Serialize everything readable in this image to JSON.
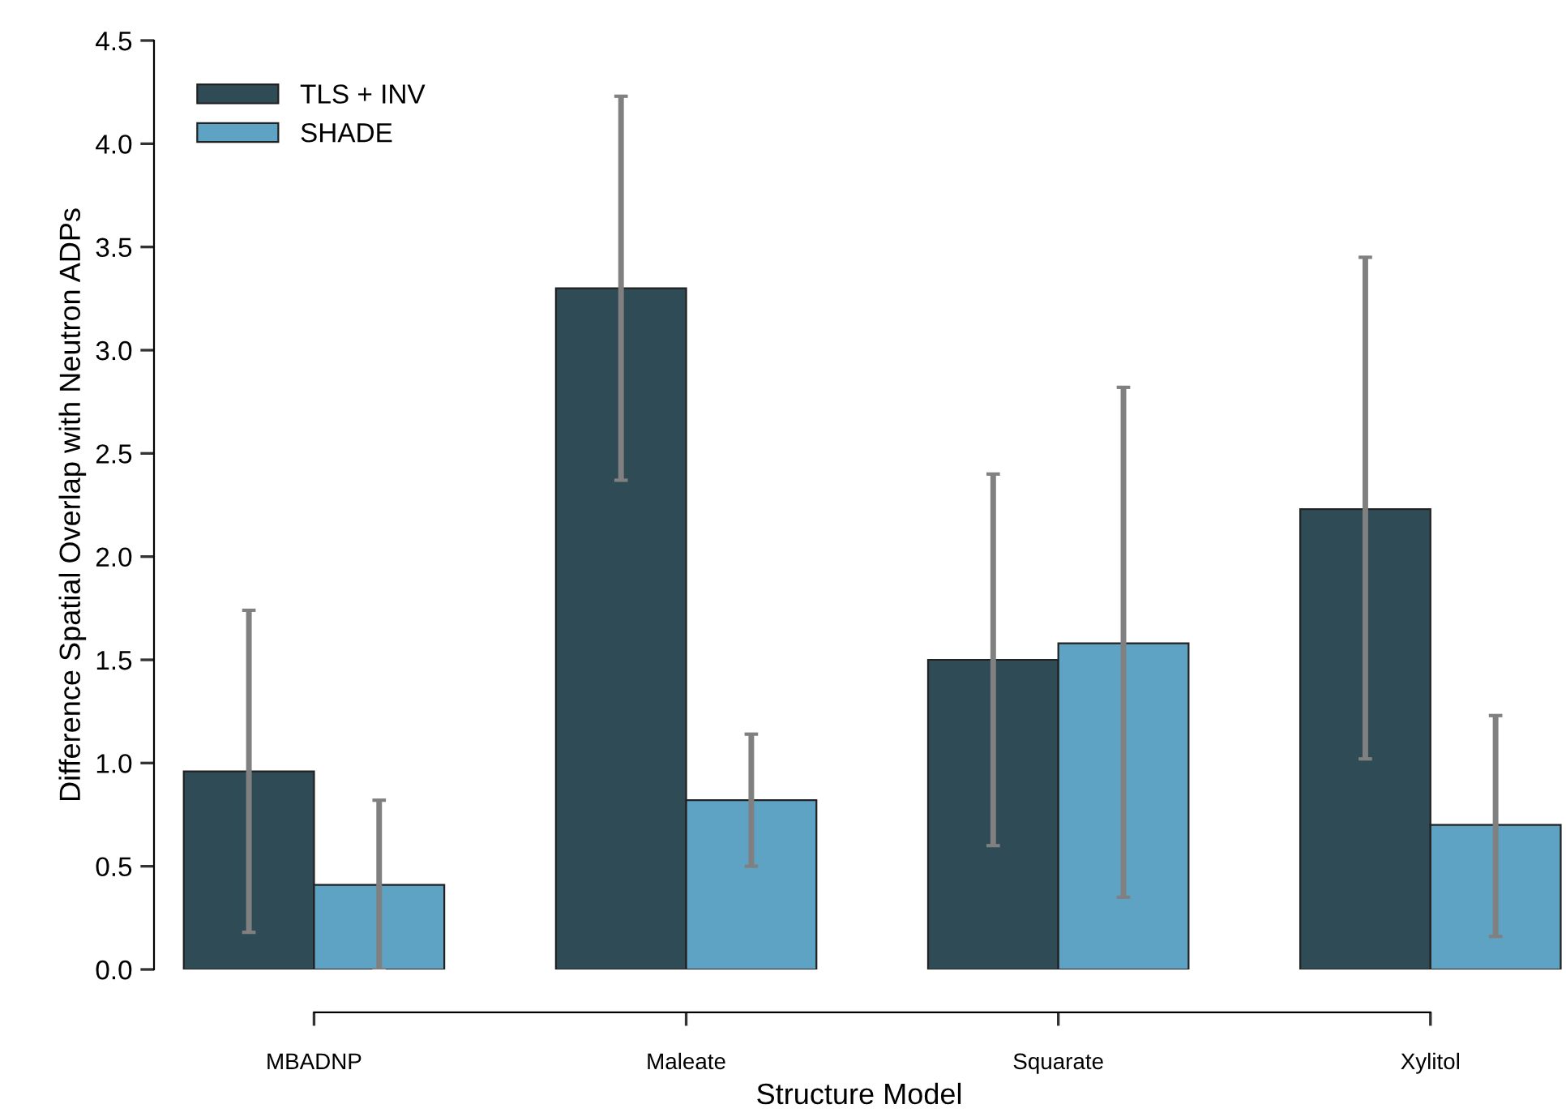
{
  "chart_data": {
    "type": "bar",
    "xlabel": "Structure Model",
    "ylabel": "Difference Spatial Overlap with Neutron ADPs",
    "categories": [
      "MBADNP",
      "Maleate",
      "Squarate",
      "Xylitol"
    ],
    "series": [
      {
        "name": "TLS + INV",
        "color": "#2f4b55",
        "values": [
          0.96,
          3.3,
          1.5,
          2.23
        ],
        "errors": [
          [
            0.18,
            1.74
          ],
          [
            2.37,
            4.23
          ],
          [
            0.6,
            2.4
          ],
          [
            1.02,
            3.45
          ]
        ]
      },
      {
        "name": "SHADE",
        "color": "#5fa3c4",
        "values": [
          0.41,
          0.82,
          1.58,
          0.7
        ],
        "errors": [
          [
            0.0,
            0.82
          ],
          [
            0.5,
            1.14
          ],
          [
            0.35,
            2.82
          ],
          [
            0.16,
            1.23
          ]
        ]
      }
    ],
    "ylim": [
      0,
      4.5
    ],
    "yticks": [
      {
        "value": 0,
        "label": "0.0"
      },
      0.5,
      {
        "value": 1,
        "label": "1.0"
      },
      1.5,
      {
        "value": 2,
        "label": "2.0"
      },
      2.5,
      {
        "value": 3,
        "label": "3.0"
      },
      3.5,
      {
        "value": 4,
        "label": "4.0"
      },
      4.5
    ],
    "grid": false,
    "legend": "top left"
  }
}
